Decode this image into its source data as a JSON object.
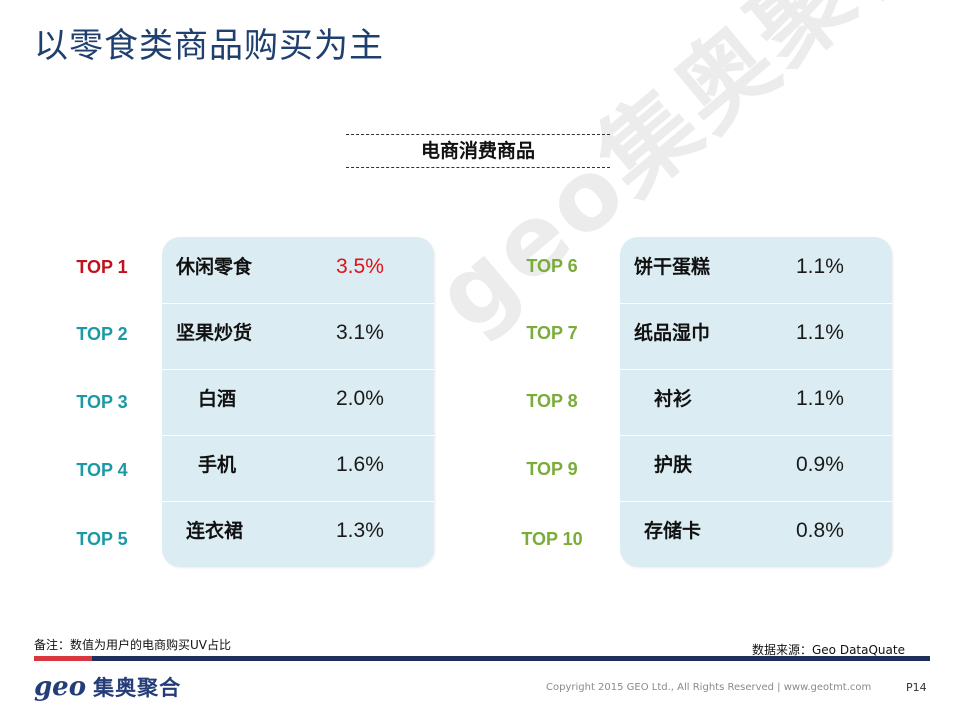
{
  "title": "以零食类商品购买为主",
  "subtitle": "电商消费商品",
  "watermark": "geo集奥聚合",
  "colors": {
    "title": "#1f3f6e",
    "rank_top1": "#c0121c",
    "rank_left": "#1b9aa6",
    "rank_right": "#7aac3a",
    "highlight_value": "#e0121c",
    "panel": "#dbecf2",
    "footer_red": "#d9363e",
    "footer_navy": "#1f2f5c"
  },
  "left_list": [
    {
      "rank": "TOP 1",
      "name": "休闲零食",
      "value": "3.5%"
    },
    {
      "rank": "TOP 2",
      "name": "坚果炒货",
      "value": "3.1%"
    },
    {
      "rank": "TOP 3",
      "name": "白酒",
      "value": "2.0%"
    },
    {
      "rank": "TOP 4",
      "name": "手机",
      "value": "1.6%"
    },
    {
      "rank": "TOP 5",
      "name": "连衣裙",
      "value": "1.3%"
    }
  ],
  "right_list": [
    {
      "rank": "TOP 6",
      "name": "饼干蛋糕",
      "value": "1.1%"
    },
    {
      "rank": "TOP 7",
      "name": "纸品湿巾",
      "value": "1.1%"
    },
    {
      "rank": "TOP 8",
      "name": "衬衫",
      "value": "1.1%"
    },
    {
      "rank": "TOP 9",
      "name": "护肤",
      "value": "0.9%"
    },
    {
      "rank": "TOP 10",
      "name": "存储卡",
      "value": "0.8%"
    }
  ],
  "footer": {
    "note": "备注：数值为用户的电商购买UV占比",
    "source": "数据来源：Geo DataQuate",
    "logo_geo": "geo",
    "logo_cn": "集奥聚合",
    "copyright": "Copyright 2015 GEO Ltd., All Rights Reserved   |   www.geotmt.com",
    "page": "P14"
  }
}
